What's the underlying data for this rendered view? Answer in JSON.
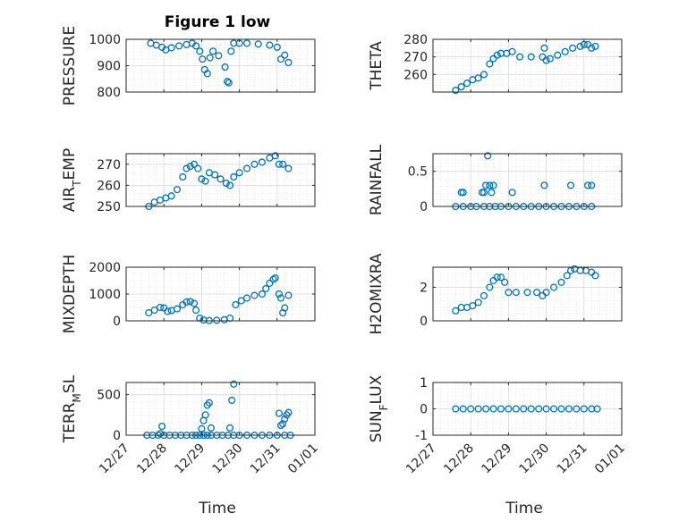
{
  "figure": {
    "title": "Figure 1 low",
    "marker_color": "#0072BD",
    "axes_color": "#262626",
    "grid_color": "#d9d9d9"
  },
  "chart_data": [
    {
      "type": "scatter",
      "ylabel": "PRESSURE",
      "ylim": [
        800,
        1000
      ],
      "yticks": [
        "800",
        "900",
        "1000"
      ],
      "xlim": [
        "12/27",
        "01/01"
      ],
      "grid": true,
      "x": [
        27.65,
        27.8,
        27.95,
        28.05,
        28.2,
        28.4,
        28.6,
        28.75,
        28.85,
        28.95,
        29.02,
        29.08,
        29.15,
        29.22,
        29.3,
        29.45,
        29.62,
        29.68,
        29.72,
        29.78,
        29.85,
        30.0,
        30.2,
        30.5,
        30.8,
        31.0,
        31.1,
        31.2,
        31.3
      ],
      "y": [
        985,
        978,
        970,
        960,
        968,
        975,
        980,
        985,
        975,
        955,
        925,
        885,
        870,
        930,
        955,
        938,
        895,
        840,
        835,
        955,
        985,
        985,
        985,
        982,
        978,
        970,
        925,
        940,
        912
      ]
    },
    {
      "type": "scatter",
      "ylabel": "THETA",
      "ylim": [
        250,
        280
      ],
      "yticks": [
        "260",
        "270",
        "280"
      ],
      "xlim": [
        "12/27",
        "01/01"
      ],
      "grid": true,
      "x": [
        27.6,
        27.75,
        27.9,
        28.05,
        28.2,
        28.35,
        28.5,
        28.6,
        28.7,
        28.8,
        28.95,
        29.1,
        29.3,
        29.6,
        29.9,
        29.95,
        30.0,
        30.1,
        30.3,
        30.5,
        30.7,
        30.9,
        31.0,
        31.1,
        31.2,
        31.3
      ],
      "y": [
        251,
        253,
        255,
        257,
        258,
        260,
        266,
        269,
        271,
        272,
        272,
        273,
        270,
        270,
        270,
        275,
        268,
        269,
        271,
        273,
        275,
        276,
        277,
        277,
        275,
        276
      ]
    },
    {
      "type": "scatter",
      "ylabel": "AIR_TEMP",
      "ylim": [
        250,
        275
      ],
      "yticks": [
        "250",
        "260",
        "270"
      ],
      "xlim": [
        "12/27",
        "01/01"
      ],
      "grid": true,
      "x": [
        27.6,
        27.75,
        27.9,
        28.05,
        28.2,
        28.35,
        28.5,
        28.6,
        28.7,
        28.8,
        28.9,
        29.0,
        29.1,
        29.2,
        29.35,
        29.5,
        29.65,
        29.75,
        29.85,
        30.0,
        30.2,
        30.4,
        30.6,
        30.8,
        30.95,
        31.05,
        31.15,
        31.3
      ],
      "y": [
        250,
        252,
        253,
        254,
        255,
        258,
        264,
        268,
        269,
        270,
        268,
        263,
        262,
        266,
        265,
        263,
        261,
        260,
        264,
        266,
        268,
        270,
        271,
        273,
        274,
        270,
        270,
        268
      ]
    },
    {
      "type": "scatter",
      "ylabel": "RAINFALL",
      "ylim": [
        0,
        0.75
      ],
      "yticks": [
        "0",
        "0.5"
      ],
      "xlim": [
        "12/27",
        "01/01"
      ],
      "grid": true,
      "x": [
        27.6,
        27.8,
        28.0,
        28.15,
        28.35,
        28.5,
        28.65,
        28.8,
        29.0,
        29.2,
        29.4,
        29.6,
        29.8,
        30.0,
        30.2,
        30.4,
        30.6,
        30.8,
        31.0,
        31.2,
        27.75,
        27.8,
        28.3,
        28.35,
        28.4,
        28.45,
        28.5,
        28.55,
        28.6,
        29.1,
        29.95,
        30.65,
        31.1,
        31.2
      ],
      "y": [
        0,
        0,
        0,
        0,
        0,
        0,
        0,
        0,
        0,
        0,
        0,
        0,
        0,
        0,
        0,
        0,
        0,
        0,
        0,
        0,
        0.2,
        0.2,
        0.2,
        0.2,
        0.3,
        0.72,
        0.3,
        0.2,
        0.3,
        0.2,
        0.3,
        0.3,
        0.3,
        0.3
      ]
    },
    {
      "type": "scatter",
      "ylabel": "MIXDEPTH",
      "ylim": [
        0,
        2000
      ],
      "yticks": [
        "0",
        "1000",
        "2000"
      ],
      "xlim": [
        "12/27",
        "01/01"
      ],
      "grid": true,
      "x": [
        27.6,
        27.75,
        27.9,
        28.0,
        28.1,
        28.2,
        28.35,
        28.5,
        28.6,
        28.7,
        28.8,
        28.85,
        28.95,
        29.05,
        29.2,
        29.4,
        29.6,
        29.75,
        29.9,
        30.05,
        30.2,
        30.4,
        30.6,
        30.7,
        30.8,
        30.9,
        30.95,
        31.05,
        31.1,
        31.15,
        31.2,
        31.3
      ],
      "y": [
        300,
        400,
        500,
        480,
        350,
        380,
        450,
        600,
        700,
        720,
        650,
        400,
        100,
        30,
        10,
        20,
        40,
        100,
        600,
        750,
        850,
        950,
        1000,
        1200,
        1400,
        1550,
        1600,
        1000,
        850,
        300,
        480,
        950
      ]
    },
    {
      "type": "scatter",
      "ylabel": "H2OMIXRA",
      "ylim": [
        0,
        3.2
      ],
      "yticks": [
        "0",
        "2"
      ],
      "xlim": [
        "12/27",
        "01/01"
      ],
      "grid": true,
      "x": [
        27.6,
        27.75,
        27.9,
        28.05,
        28.2,
        28.35,
        28.5,
        28.6,
        28.7,
        28.8,
        28.9,
        29.0,
        29.2,
        29.5,
        29.75,
        29.9,
        30.0,
        30.2,
        30.4,
        30.55,
        30.65,
        30.75,
        30.9,
        31.05,
        31.2,
        31.3
      ],
      "y": [
        0.6,
        0.8,
        0.8,
        0.9,
        1.1,
        1.5,
        2.0,
        2.4,
        2.6,
        2.6,
        2.3,
        1.7,
        1.7,
        1.7,
        1.7,
        1.5,
        1.7,
        2.0,
        2.3,
        2.7,
        3.0,
        3.1,
        3.0,
        3.0,
        2.9,
        2.7
      ]
    },
    {
      "type": "scatter",
      "ylabel": "TERR_MSL",
      "ylim": [
        0,
        650
      ],
      "yticks": [
        "0",
        "500"
      ],
      "xlim": [
        "12/27",
        "01/01"
      ],
      "grid": true,
      "x": [
        27.55,
        27.7,
        27.85,
        28.0,
        28.15,
        28.3,
        28.45,
        28.6,
        28.75,
        28.85,
        28.95,
        29.05,
        29.15,
        29.25,
        29.4,
        29.55,
        29.7,
        29.85,
        30.0,
        30.2,
        30.4,
        30.6,
        30.8,
        31.0,
        31.2,
        31.35,
        27.9,
        27.95,
        29.0,
        29.05,
        29.1,
        29.15,
        29.2,
        29.25,
        29.75,
        29.8,
        29.85,
        31.05,
        31.1,
        31.15,
        31.2,
        31.25,
        31.3
      ],
      "y": [
        0,
        0,
        0,
        0,
        0,
        0,
        0,
        0,
        0,
        0,
        0,
        0,
        0,
        0,
        0,
        0,
        0,
        0,
        0,
        0,
        0,
        0,
        0,
        0,
        0,
        0,
        20,
        110,
        80,
        180,
        250,
        370,
        400,
        90,
        90,
        430,
        630,
        270,
        120,
        140,
        200,
        250,
        280
      ]
    },
    {
      "type": "scatter",
      "ylabel": "SUN_FLUX",
      "ylim": [
        -1,
        1
      ],
      "yticks": [
        "-1",
        "0",
        "1"
      ],
      "xlim": [
        "12/27",
        "01/01"
      ],
      "grid": true,
      "x": [
        27.6,
        27.8,
        28.0,
        28.2,
        28.4,
        28.6,
        28.8,
        29.0,
        29.2,
        29.4,
        29.6,
        29.8,
        30.0,
        30.2,
        30.4,
        30.6,
        30.8,
        31.0,
        31.2,
        31.35
      ],
      "y": [
        0,
        0,
        0,
        0,
        0,
        0,
        0,
        0,
        0,
        0,
        0,
        0,
        0,
        0,
        0,
        0,
        0,
        0,
        0,
        0
      ]
    }
  ],
  "xaxis": {
    "ticks": [
      "12/27",
      "12/28",
      "12/29",
      "12/30",
      "12/31",
      "01/01"
    ],
    "label": "Time"
  }
}
